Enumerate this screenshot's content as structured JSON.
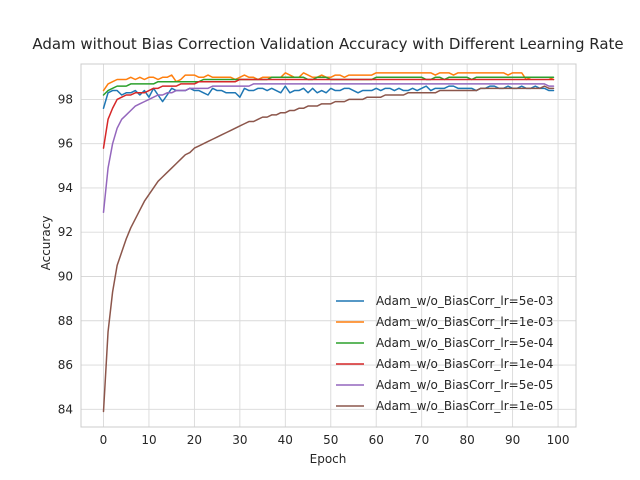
{
  "chart_data": {
    "type": "line",
    "title": "Adam without Bias Correction Validation Accuracy with Different Learning Rate",
    "xlabel": "Epoch",
    "ylabel": "Accuracy",
    "xlim": [
      -4.95,
      103.95
    ],
    "ylim": [
      83.2,
      99.6
    ],
    "xticks": [
      0,
      10,
      20,
      30,
      40,
      50,
      60,
      70,
      80,
      90,
      100
    ],
    "yticks": [
      84,
      86,
      88,
      90,
      92,
      94,
      96,
      98
    ],
    "grid": true,
    "legend_position": "lower-right",
    "series": [
      {
        "name": "Adam_w/o_BiasCorr_lr=5e-03",
        "color": "#1f77b4",
        "values": [
          97.6,
          98.3,
          98.4,
          98.4,
          98.2,
          98.3,
          98.3,
          98.4,
          98.2,
          98.4,
          98.1,
          98.5,
          98.2,
          97.9,
          98.2,
          98.5,
          98.4,
          98.4,
          98.4,
          98.5,
          98.4,
          98.4,
          98.3,
          98.2,
          98.5,
          98.4,
          98.4,
          98.3,
          98.3,
          98.3,
          98.1,
          98.5,
          98.4,
          98.4,
          98.5,
          98.5,
          98.4,
          98.5,
          98.4,
          98.3,
          98.6,
          98.3,
          98.4,
          98.4,
          98.5,
          98.3,
          98.5,
          98.3,
          98.4,
          98.3,
          98.5,
          98.4,
          98.4,
          98.5,
          98.5,
          98.4,
          98.3,
          98.4,
          98.4,
          98.4,
          98.5,
          98.4,
          98.5,
          98.5,
          98.4,
          98.5,
          98.4,
          98.4,
          98.5,
          98.4,
          98.5,
          98.6,
          98.4,
          98.5,
          98.5,
          98.5,
          98.6,
          98.6,
          98.5,
          98.5,
          98.5,
          98.5,
          98.4,
          98.5,
          98.5,
          98.6,
          98.6,
          98.5,
          98.5,
          98.6,
          98.5,
          98.5,
          98.6,
          98.5,
          98.5,
          98.6,
          98.5,
          98.5,
          98.4,
          98.4
        ]
      },
      {
        "name": "Adam_w/o_BiasCorr_lr=1e-03",
        "color": "#ff7f0e",
        "values": [
          98.4,
          98.7,
          98.8,
          98.9,
          98.9,
          98.9,
          99.0,
          98.9,
          99.0,
          98.9,
          99.0,
          99.0,
          98.9,
          99.0,
          99.0,
          99.1,
          98.8,
          98.9,
          99.1,
          99.1,
          99.1,
          99.0,
          99.0,
          99.1,
          99.0,
          99.0,
          99.0,
          99.0,
          99.0,
          98.9,
          99.0,
          99.1,
          99.0,
          99.0,
          98.9,
          99.0,
          99.0,
          99.0,
          99.0,
          99.0,
          99.2,
          99.1,
          99.0,
          99.0,
          99.2,
          99.1,
          99.0,
          99.0,
          99.1,
          99.0,
          99.0,
          99.1,
          99.1,
          99.0,
          99.1,
          99.1,
          99.1,
          99.1,
          99.1,
          99.1,
          99.2,
          99.2,
          99.2,
          99.2,
          99.2,
          99.2,
          99.2,
          99.2,
          99.2,
          99.2,
          99.2,
          99.2,
          99.2,
          99.1,
          99.2,
          99.2,
          99.2,
          99.1,
          99.2,
          99.2,
          99.2,
          99.2,
          99.2,
          99.2,
          99.2,
          99.2,
          99.2,
          99.2,
          99.2,
          99.1,
          99.2,
          99.2,
          99.2,
          98.9,
          99.0,
          99.0,
          99.0,
          99.0,
          99.0,
          98.9
        ]
      },
      {
        "name": "Adam_w/o_BiasCorr_lr=5e-04",
        "color": "#2ca02c",
        "values": [
          98.2,
          98.4,
          98.5,
          98.6,
          98.6,
          98.6,
          98.7,
          98.7,
          98.7,
          98.7,
          98.7,
          98.7,
          98.8,
          98.8,
          98.8,
          98.8,
          98.8,
          98.8,
          98.8,
          98.8,
          98.8,
          98.8,
          98.9,
          98.9,
          98.9,
          98.9,
          98.9,
          98.9,
          98.9,
          98.9,
          98.9,
          98.9,
          98.9,
          98.9,
          98.9,
          98.9,
          98.9,
          99.0,
          99.0,
          99.0,
          99.0,
          99.0,
          99.0,
          99.0,
          99.0,
          98.9,
          98.9,
          99.0,
          99.0,
          99.0,
          98.9,
          98.9,
          98.9,
          98.9,
          98.9,
          98.9,
          98.9,
          98.9,
          98.9,
          98.9,
          99.0,
          99.0,
          99.0,
          99.0,
          99.0,
          99.0,
          99.0,
          99.0,
          99.0,
          99.0,
          99.0,
          98.9,
          98.9,
          99.0,
          99.0,
          98.9,
          99.0,
          99.0,
          99.0,
          99.0,
          99.0,
          98.9,
          99.0,
          99.0,
          99.0,
          99.0,
          99.0,
          99.0,
          99.0,
          99.0,
          99.0,
          99.0,
          99.0,
          99.0,
          99.0,
          99.0,
          99.0,
          99.0,
          99.0,
          99.0
        ]
      },
      {
        "name": "Adam_w/o_BiasCorr_lr=1e-04",
        "color": "#d62728",
        "values": [
          95.8,
          97.1,
          97.6,
          98.0,
          98.1,
          98.2,
          98.2,
          98.3,
          98.3,
          98.3,
          98.4,
          98.5,
          98.5,
          98.6,
          98.6,
          98.6,
          98.6,
          98.7,
          98.7,
          98.7,
          98.7,
          98.8,
          98.8,
          98.8,
          98.8,
          98.8,
          98.8,
          98.8,
          98.8,
          98.8,
          98.9,
          98.9,
          98.9,
          98.9,
          98.9,
          98.9,
          98.9,
          98.9,
          98.9,
          98.9,
          98.9,
          98.9,
          98.9,
          98.9,
          98.9,
          98.9,
          98.9,
          98.9,
          98.9,
          98.9,
          98.9,
          98.9,
          98.9,
          98.9,
          98.9,
          98.9,
          98.9,
          98.9,
          98.9,
          98.9,
          98.9,
          98.9,
          98.9,
          98.9,
          98.9,
          98.9,
          98.9,
          98.9,
          98.9,
          98.9,
          98.9,
          98.9,
          98.9,
          98.9,
          98.9,
          98.9,
          98.9,
          98.9,
          98.9,
          98.9,
          98.9,
          98.9,
          98.9,
          98.9,
          98.9,
          98.9,
          98.9,
          98.9,
          98.9,
          98.9,
          98.9,
          98.9,
          98.9,
          98.9,
          98.9,
          98.9,
          98.9,
          98.9,
          98.9,
          98.9
        ]
      },
      {
        "name": "Adam_w/o_BiasCorr_lr=5e-05",
        "color": "#9467bd",
        "values": [
          92.9,
          94.9,
          96.0,
          96.7,
          97.1,
          97.3,
          97.5,
          97.7,
          97.8,
          97.9,
          98.0,
          98.1,
          98.2,
          98.2,
          98.3,
          98.3,
          98.4,
          98.4,
          98.4,
          98.5,
          98.5,
          98.5,
          98.5,
          98.5,
          98.6,
          98.6,
          98.6,
          98.6,
          98.6,
          98.6,
          98.6,
          98.6,
          98.6,
          98.7,
          98.7,
          98.7,
          98.7,
          98.7,
          98.7,
          98.7,
          98.7,
          98.7,
          98.7,
          98.7,
          98.7,
          98.7,
          98.7,
          98.7,
          98.7,
          98.7,
          98.7,
          98.7,
          98.7,
          98.7,
          98.7,
          98.7,
          98.7,
          98.7,
          98.7,
          98.7,
          98.7,
          98.7,
          98.7,
          98.7,
          98.7,
          98.7,
          98.7,
          98.7,
          98.7,
          98.7,
          98.7,
          98.7,
          98.7,
          98.7,
          98.7,
          98.7,
          98.7,
          98.7,
          98.7,
          98.7,
          98.7,
          98.7,
          98.7,
          98.7,
          98.7,
          98.7,
          98.7,
          98.7,
          98.7,
          98.7,
          98.7,
          98.7,
          98.7,
          98.7,
          98.7,
          98.7,
          98.7,
          98.7,
          98.6,
          98.6
        ]
      },
      {
        "name": "Adam_w/o_BiasCorr_lr=1e-05",
        "color": "#8c564b",
        "values": [
          83.9,
          87.5,
          89.3,
          90.5,
          91.1,
          91.7,
          92.2,
          92.6,
          93.0,
          93.4,
          93.7,
          94.0,
          94.3,
          94.5,
          94.7,
          94.9,
          95.1,
          95.3,
          95.5,
          95.6,
          95.8,
          95.9,
          96.0,
          96.1,
          96.2,
          96.3,
          96.4,
          96.5,
          96.6,
          96.7,
          96.8,
          96.9,
          97.0,
          97.0,
          97.1,
          97.2,
          97.2,
          97.3,
          97.3,
          97.4,
          97.4,
          97.5,
          97.5,
          97.6,
          97.6,
          97.7,
          97.7,
          97.7,
          97.8,
          97.8,
          97.8,
          97.9,
          97.9,
          97.9,
          98.0,
          98.0,
          98.0,
          98.0,
          98.1,
          98.1,
          98.1,
          98.1,
          98.2,
          98.2,
          98.2,
          98.2,
          98.2,
          98.3,
          98.3,
          98.3,
          98.3,
          98.3,
          98.3,
          98.3,
          98.4,
          98.4,
          98.4,
          98.4,
          98.4,
          98.4,
          98.4,
          98.4,
          98.4,
          98.5,
          98.5,
          98.5,
          98.5,
          98.5,
          98.5,
          98.5,
          98.5,
          98.5,
          98.5,
          98.5,
          98.5,
          98.5,
          98.5,
          98.6,
          98.5,
          98.5
        ]
      }
    ]
  }
}
